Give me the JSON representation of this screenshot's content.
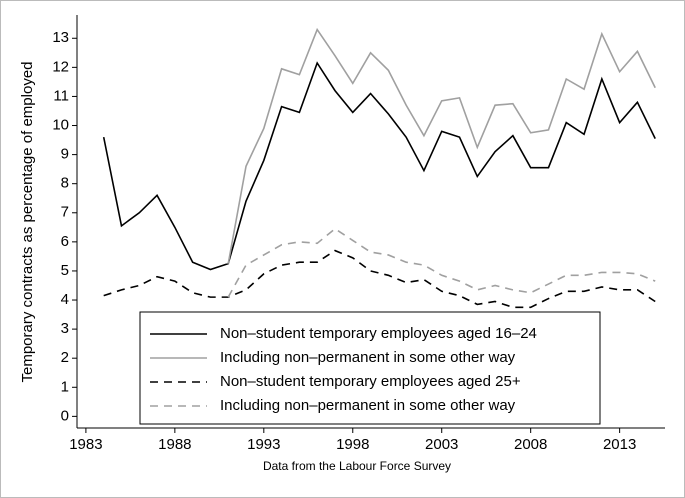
{
  "chart_data": {
    "type": "line",
    "y_label": "Temporary contracts as percentage of employed",
    "x_label": "Data from the Labour Force Survey",
    "x": [
      1984,
      1985,
      1986,
      1987,
      1988,
      1989,
      1990,
      1991,
      1992,
      1993,
      1994,
      1995,
      1996,
      1997,
      1998,
      1999,
      2000,
      2001,
      2002,
      2003,
      2004,
      2005,
      2006,
      2007,
      2008,
      2009,
      2010,
      2011,
      2012,
      2013,
      2014,
      2015
    ],
    "xlim": [
      1982.5,
      2015.55
    ],
    "xticks": [
      1983,
      1988,
      1993,
      1998,
      2003,
      2008,
      2013
    ],
    "ylim": [
      -0.4,
      13.8
    ],
    "yticks": [
      0,
      1,
      2,
      3,
      4,
      5,
      6,
      7,
      8,
      9,
      10,
      11,
      12,
      13
    ],
    "series": [
      {
        "name": "Non–student temporary employees aged 16–24",
        "color": "#000000",
        "dash": false,
        "values": [
          9.6,
          6.55,
          7.0,
          7.6,
          6.5,
          5.3,
          5.05,
          5.25,
          7.4,
          8.8,
          10.65,
          10.45,
          12.15,
          11.2,
          10.45,
          11.1,
          10.4,
          9.6,
          8.45,
          9.8,
          9.6,
          8.25,
          9.1,
          9.65,
          8.55,
          8.55,
          10.1,
          9.7,
          11.6,
          10.1,
          10.8,
          9.55
        ]
      },
      {
        "name": "Including non–permanent in some other way",
        "color": "#a0a0a0",
        "dash": false,
        "values": [
          null,
          null,
          null,
          null,
          null,
          null,
          null,
          5.25,
          8.6,
          9.9,
          11.95,
          11.75,
          13.3,
          12.4,
          11.45,
          12.5,
          11.9,
          10.7,
          9.65,
          10.85,
          10.95,
          9.25,
          10.7,
          10.75,
          9.75,
          9.85,
          11.6,
          11.25,
          13.15,
          11.85,
          12.55,
          11.3
        ]
      },
      {
        "name": "Non–student temporary employees aged 25+",
        "color": "#000000",
        "dash": true,
        "values": [
          4.15,
          4.35,
          4.5,
          4.8,
          4.65,
          4.25,
          4.1,
          4.1,
          4.35,
          4.9,
          5.2,
          5.3,
          5.3,
          5.7,
          5.45,
          5.0,
          4.85,
          4.6,
          4.7,
          4.3,
          4.15,
          3.85,
          3.95,
          3.75,
          3.75,
          4.05,
          4.3,
          4.3,
          4.45,
          4.35,
          4.35,
          3.95
        ]
      },
      {
        "name": "Including non–permanent in some other way",
        "color": "#a0a0a0",
        "dash": true,
        "values": [
          null,
          null,
          null,
          null,
          null,
          null,
          null,
          4.1,
          5.2,
          5.55,
          5.9,
          6.0,
          5.95,
          6.45,
          6.05,
          5.65,
          5.55,
          5.3,
          5.2,
          4.85,
          4.65,
          4.35,
          4.5,
          4.35,
          4.25,
          4.55,
          4.85,
          4.85,
          4.95,
          4.95,
          4.9,
          4.65
        ]
      }
    ]
  }
}
